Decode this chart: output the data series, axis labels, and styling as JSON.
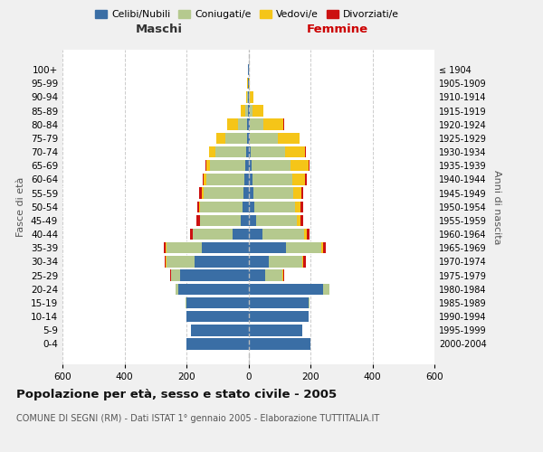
{
  "age_groups": [
    "0-4",
    "5-9",
    "10-14",
    "15-19",
    "20-24",
    "25-29",
    "30-34",
    "35-39",
    "40-44",
    "45-49",
    "50-54",
    "55-59",
    "60-64",
    "65-69",
    "70-74",
    "75-79",
    "80-84",
    "85-89",
    "90-94",
    "95-99",
    "100+"
  ],
  "birth_years": [
    "2000-2004",
    "1995-1999",
    "1990-1994",
    "1985-1989",
    "1980-1984",
    "1975-1979",
    "1970-1974",
    "1965-1969",
    "1960-1964",
    "1955-1959",
    "1950-1954",
    "1945-1949",
    "1940-1944",
    "1935-1939",
    "1930-1934",
    "1925-1929",
    "1920-1924",
    "1915-1919",
    "1910-1914",
    "1905-1909",
    "≤ 1904"
  ],
  "colors": {
    "celibi": "#3a6ea5",
    "coniugati": "#b5c98e",
    "vedovi": "#f5c518",
    "divorziati": "#cc1111"
  },
  "legend_colors": {
    "Celibi/Nubili": "#3a6ea5",
    "Coniugati/e": "#b5c98e",
    "Vedovi/e": "#f5c518",
    "Divorziati/e": "#cc1111"
  },
  "maschi": {
    "celibi": [
      200,
      185,
      200,
      200,
      225,
      220,
      175,
      150,
      50,
      25,
      20,
      15,
      12,
      10,
      8,
      5,
      3,
      2,
      1,
      1,
      1
    ],
    "coniugati": [
      0,
      0,
      0,
      2,
      10,
      30,
      90,
      115,
      130,
      130,
      135,
      130,
      125,
      115,
      100,
      70,
      30,
      8,
      2,
      0,
      0
    ],
    "vedovi": [
      0,
      0,
      0,
      0,
      0,
      1,
      1,
      1,
      1,
      2,
      3,
      5,
      8,
      12,
      20,
      30,
      35,
      15,
      5,
      2,
      1
    ],
    "divorziati": [
      0,
      0,
      0,
      0,
      1,
      2,
      3,
      8,
      8,
      10,
      8,
      8,
      3,
      2,
      0,
      0,
      0,
      0,
      0,
      0,
      0
    ]
  },
  "femmine": {
    "nubili": [
      200,
      175,
      195,
      195,
      240,
      55,
      65,
      120,
      45,
      25,
      20,
      15,
      12,
      10,
      8,
      5,
      3,
      3,
      2,
      1,
      1
    ],
    "coniugate": [
      0,
      0,
      0,
      3,
      20,
      55,
      110,
      115,
      135,
      130,
      130,
      130,
      130,
      125,
      110,
      90,
      45,
      10,
      3,
      0,
      0
    ],
    "vedove": [
      0,
      0,
      0,
      0,
      0,
      2,
      3,
      5,
      8,
      12,
      18,
      25,
      40,
      60,
      65,
      70,
      65,
      35,
      10,
      3,
      1
    ],
    "divorziate": [
      0,
      0,
      0,
      0,
      1,
      3,
      8,
      10,
      10,
      10,
      8,
      8,
      5,
      3,
      3,
      0,
      3,
      0,
      0,
      0,
      0
    ]
  },
  "xlim": 600,
  "title": "Popolazione per età, sesso e stato civile - 2005",
  "subtitle": "COMUNE DI SEGNI (RM) - Dati ISTAT 1° gennaio 2005 - Elaborazione TUTTITALIA.IT",
  "xlabel_left": "Maschi",
  "xlabel_right": "Femmine",
  "ylabel_left": "Fasce di età",
  "ylabel_right": "Anni di nascita",
  "bg_color": "#f0f0f0",
  "plot_bg": "#ffffff",
  "grid_color": "#cccccc"
}
